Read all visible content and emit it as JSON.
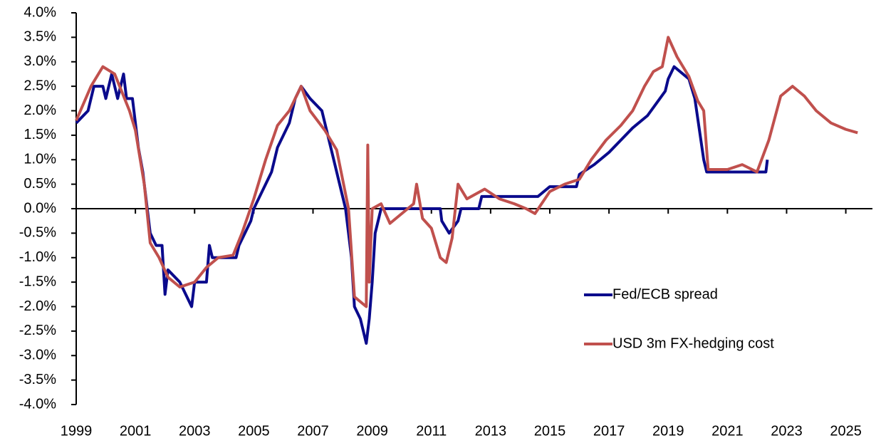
{
  "chart_data": {
    "type": "line",
    "xlim": [
      1999,
      2025.9
    ],
    "xticks": [
      1999,
      2001,
      2003,
      2005,
      2007,
      2009,
      2011,
      2013,
      2015,
      2017,
      2019,
      2021,
      2023,
      2025
    ],
    "ylim": [
      -4,
      4
    ],
    "yticks": [
      {
        "value": 4,
        "label": "4.0%"
      },
      {
        "value": 3.5,
        "label": "3.5%"
      },
      {
        "value": 3,
        "label": "3.0%"
      },
      {
        "value": 2.5,
        "label": "2.5%"
      },
      {
        "value": 2,
        "label": "2.0%"
      },
      {
        "value": 1.5,
        "label": "1.5%"
      },
      {
        "value": 1,
        "label": "1.0%"
      },
      {
        "value": 0.5,
        "label": "0.5%"
      },
      {
        "value": 0,
        "label": "0.0%"
      },
      {
        "value": -0.5,
        "label": "-0.5%"
      },
      {
        "value": -1,
        "label": "-1.0%"
      },
      {
        "value": -1.5,
        "label": "-1.5%"
      },
      {
        "value": -2,
        "label": "-2.0%"
      },
      {
        "value": -2.5,
        "label": "-2.5%"
      },
      {
        "value": -3,
        "label": "-3.0%"
      },
      {
        "value": -3.5,
        "label": "-3.5%"
      },
      {
        "value": -4,
        "label": "-4.0%"
      }
    ],
    "legend": "right",
    "series": [
      {
        "name": "Fed/ECB spread",
        "color": "#0a0a8c",
        "x": [
          1999.0,
          1999.4,
          1999.6,
          1999.9,
          2000.0,
          2000.2,
          2000.4,
          2000.6,
          2000.7,
          2000.9,
          2001.0,
          2001.1,
          2001.25,
          2001.4,
          2001.5,
          2001.7,
          2001.9,
          2002.0,
          2002.1,
          2002.5,
          2002.9,
          2003.0,
          2003.4,
          2003.5,
          2003.6,
          2004.4,
          2004.5,
          2004.7,
          2004.9,
          2005.0,
          2005.2,
          2005.4,
          2005.6,
          2005.8,
          2006.0,
          2006.2,
          2006.4,
          2006.6,
          2006.9,
          2007.3,
          2007.5,
          2007.7,
          2007.9,
          2008.1,
          2008.3,
          2008.4,
          2008.6,
          2008.8,
          2008.9,
          2009.0,
          2009.1,
          2009.3,
          2011.3,
          2011.35,
          2011.6,
          2011.9,
          2012.0,
          2012.6,
          2012.7,
          2014.6,
          2014.7,
          2015.0,
          2015.9,
          2016.0,
          2016.5,
          2017.0,
          2017.4,
          2017.8,
          2018.3,
          2018.6,
          2018.9,
          2019.0,
          2019.2,
          2019.7,
          2019.9,
          2020.2,
          2020.3,
          2022.3,
          2022.35
        ],
        "values": [
          1.75,
          2.0,
          2.5,
          2.5,
          2.25,
          2.75,
          2.25,
          2.75,
          2.25,
          2.25,
          1.75,
          1.25,
          0.75,
          0.0,
          -0.5,
          -0.75,
          -0.75,
          -1.75,
          -1.25,
          -1.5,
          -2.0,
          -1.5,
          -1.5,
          -0.75,
          -1.0,
          -1.0,
          -0.75,
          -0.5,
          -0.25,
          0.0,
          0.25,
          0.5,
          0.75,
          1.25,
          1.5,
          1.75,
          2.25,
          2.5,
          2.25,
          2.0,
          1.5,
          1.0,
          0.5,
          0.0,
          -1.0,
          -2.0,
          -2.25,
          -2.75,
          -2.25,
          -1.5,
          -0.5,
          0.0,
          0.0,
          -0.25,
          -0.5,
          -0.25,
          0.0,
          0.0,
          0.25,
          0.25,
          0.3,
          0.45,
          0.45,
          0.7,
          0.9,
          1.15,
          1.4,
          1.65,
          1.9,
          2.15,
          2.4,
          2.65,
          2.9,
          2.65,
          2.25,
          1.0,
          0.75,
          0.75,
          1.0
        ]
      },
      {
        "name": "USD 3m FX-hedging cost",
        "color": "#c0504d",
        "x": [
          1999.0,
          1999.5,
          1999.9,
          2000.3,
          2000.8,
          2001.0,
          2001.3,
          2001.5,
          2001.8,
          2002.1,
          2002.5,
          2003.0,
          2003.4,
          2003.8,
          2004.3,
          2004.6,
          2005.0,
          2005.4,
          2005.8,
          2006.2,
          2006.6,
          2006.9,
          2007.4,
          2007.8,
          2008.0,
          2008.2,
          2008.4,
          2008.6,
          2008.8,
          2008.85,
          2008.9,
          2009.0,
          2009.3,
          2009.6,
          2010.0,
          2010.4,
          2010.5,
          2010.7,
          2011.0,
          2011.3,
          2011.5,
          2011.7,
          2011.9,
          2012.2,
          2012.8,
          2013.3,
          2013.8,
          2014.2,
          2014.5,
          2015.0,
          2015.5,
          2016.0,
          2016.4,
          2016.9,
          2017.4,
          2017.8,
          2018.2,
          2018.5,
          2018.8,
          2019.0,
          2019.3,
          2019.7,
          2020.0,
          2020.2,
          2020.35,
          2021.0,
          2021.5,
          2022.0,
          2022.4,
          2022.8,
          2023.2,
          2023.6,
          2024.0,
          2024.5,
          2025.0,
          2025.4
        ],
        "values": [
          1.8,
          2.5,
          2.9,
          2.75,
          2.0,
          1.6,
          0.5,
          -0.7,
          -1.0,
          -1.4,
          -1.6,
          -1.5,
          -1.2,
          -1.0,
          -0.95,
          -0.5,
          0.2,
          1.0,
          1.7,
          2.0,
          2.5,
          2.0,
          1.6,
          1.2,
          0.6,
          0.0,
          -1.8,
          -1.9,
          -2.0,
          1.3,
          -1.5,
          0.0,
          0.1,
          -0.3,
          -0.1,
          0.1,
          0.5,
          -0.2,
          -0.4,
          -1.0,
          -1.1,
          -0.6,
          0.5,
          0.2,
          0.4,
          0.2,
          0.1,
          0.0,
          -0.1,
          0.35,
          0.5,
          0.6,
          1.0,
          1.4,
          1.7,
          2.0,
          2.5,
          2.8,
          2.9,
          3.5,
          3.1,
          2.7,
          2.2,
          2.0,
          0.8,
          0.8,
          0.9,
          0.75,
          1.4,
          2.3,
          2.5,
          2.3,
          2.0,
          1.75,
          1.62,
          1.55
        ]
      }
    ]
  }
}
